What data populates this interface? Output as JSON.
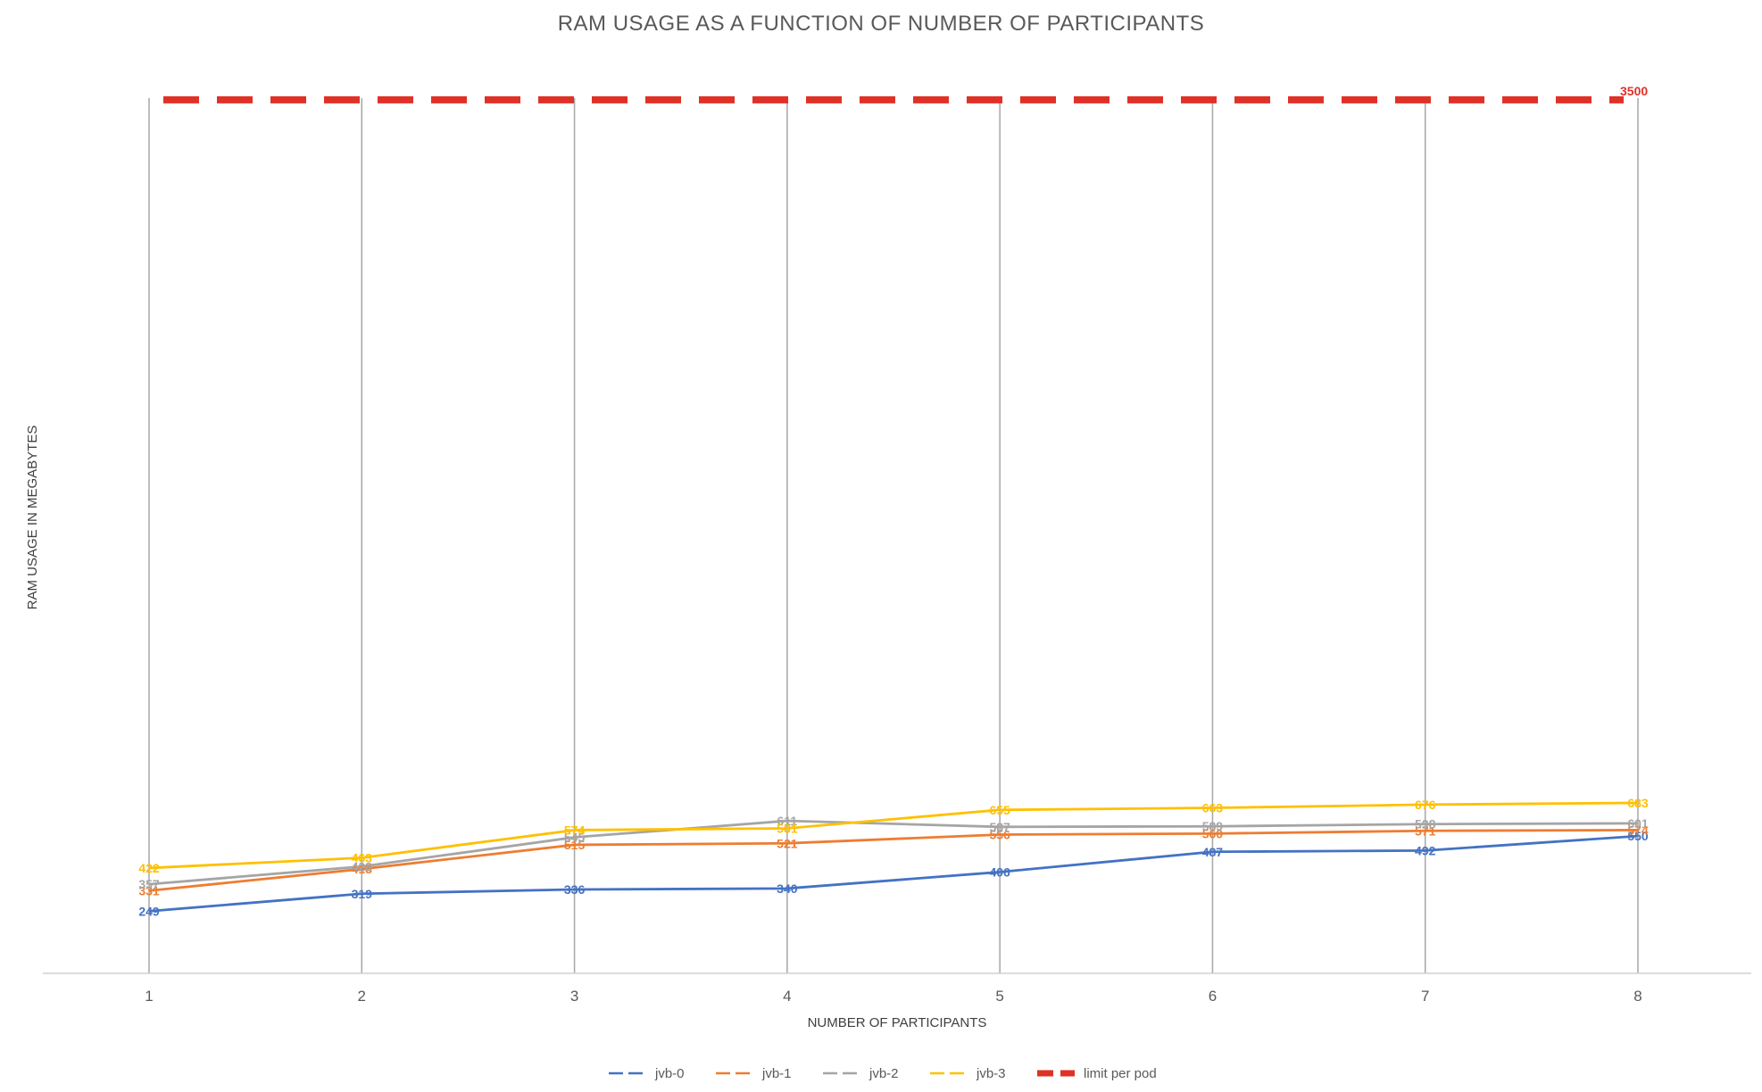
{
  "chart_data": {
    "type": "line",
    "title": "RAM USAGE AS A FUNCTION OF NUMBER OF PARTICIPANTS",
    "xlabel": "NUMBER OF PARTICIPANTS",
    "ylabel": "RAM USAGE IN MEGABYTES",
    "x": [
      "1",
      "2",
      "3",
      "4",
      "5",
      "6",
      "7",
      "8"
    ],
    "ylim": [
      0,
      3900
    ],
    "grid": "vertical",
    "legend": "bottom",
    "series": [
      {
        "name": "jvb-0",
        "color": "#4472C4",
        "dash": "none",
        "values": [
          249,
          319,
          336,
          340,
          406,
          487,
          492,
          550
        ],
        "labels": [
          "249",
          "319",
          "336",
          "340",
          "406",
          "487",
          "492",
          "550"
        ]
      },
      {
        "name": "jvb-1",
        "color": "#ED7D31",
        "dash": "none",
        "values": [
          331,
          418,
          515,
          521,
          556,
          560,
          571,
          574
        ],
        "labels": [
          "331",
          "418",
          "515",
          "521",
          "556",
          "560",
          "571",
          "574"
        ]
      },
      {
        "name": "jvb-2",
        "color": "#A5A5A5",
        "dash": "none",
        "values": [
          357,
          428,
          545,
          611,
          587,
          589,
          598,
          601
        ],
        "labels": [
          "357",
          "428",
          "545",
          "611",
          "587",
          "589",
          "598",
          "601"
        ]
      },
      {
        "name": "jvb-3",
        "color": "#FFC000",
        "dash": "none",
        "values": [
          422,
          463,
          574,
          581,
          655,
          663,
          676,
          683
        ],
        "labels": [
          "422",
          "463",
          "574",
          "581",
          "655",
          "663",
          "676",
          "683"
        ]
      },
      {
        "name": "limit per pod",
        "color": "#E03127",
        "dash": "dashed",
        "values": [
          3500,
          3500,
          3500,
          3500,
          3500,
          3500,
          3500,
          3500
        ],
        "labels": [
          "",
          "",
          "",
          "",
          "",
          "",
          "",
          "3500"
        ]
      }
    ]
  }
}
